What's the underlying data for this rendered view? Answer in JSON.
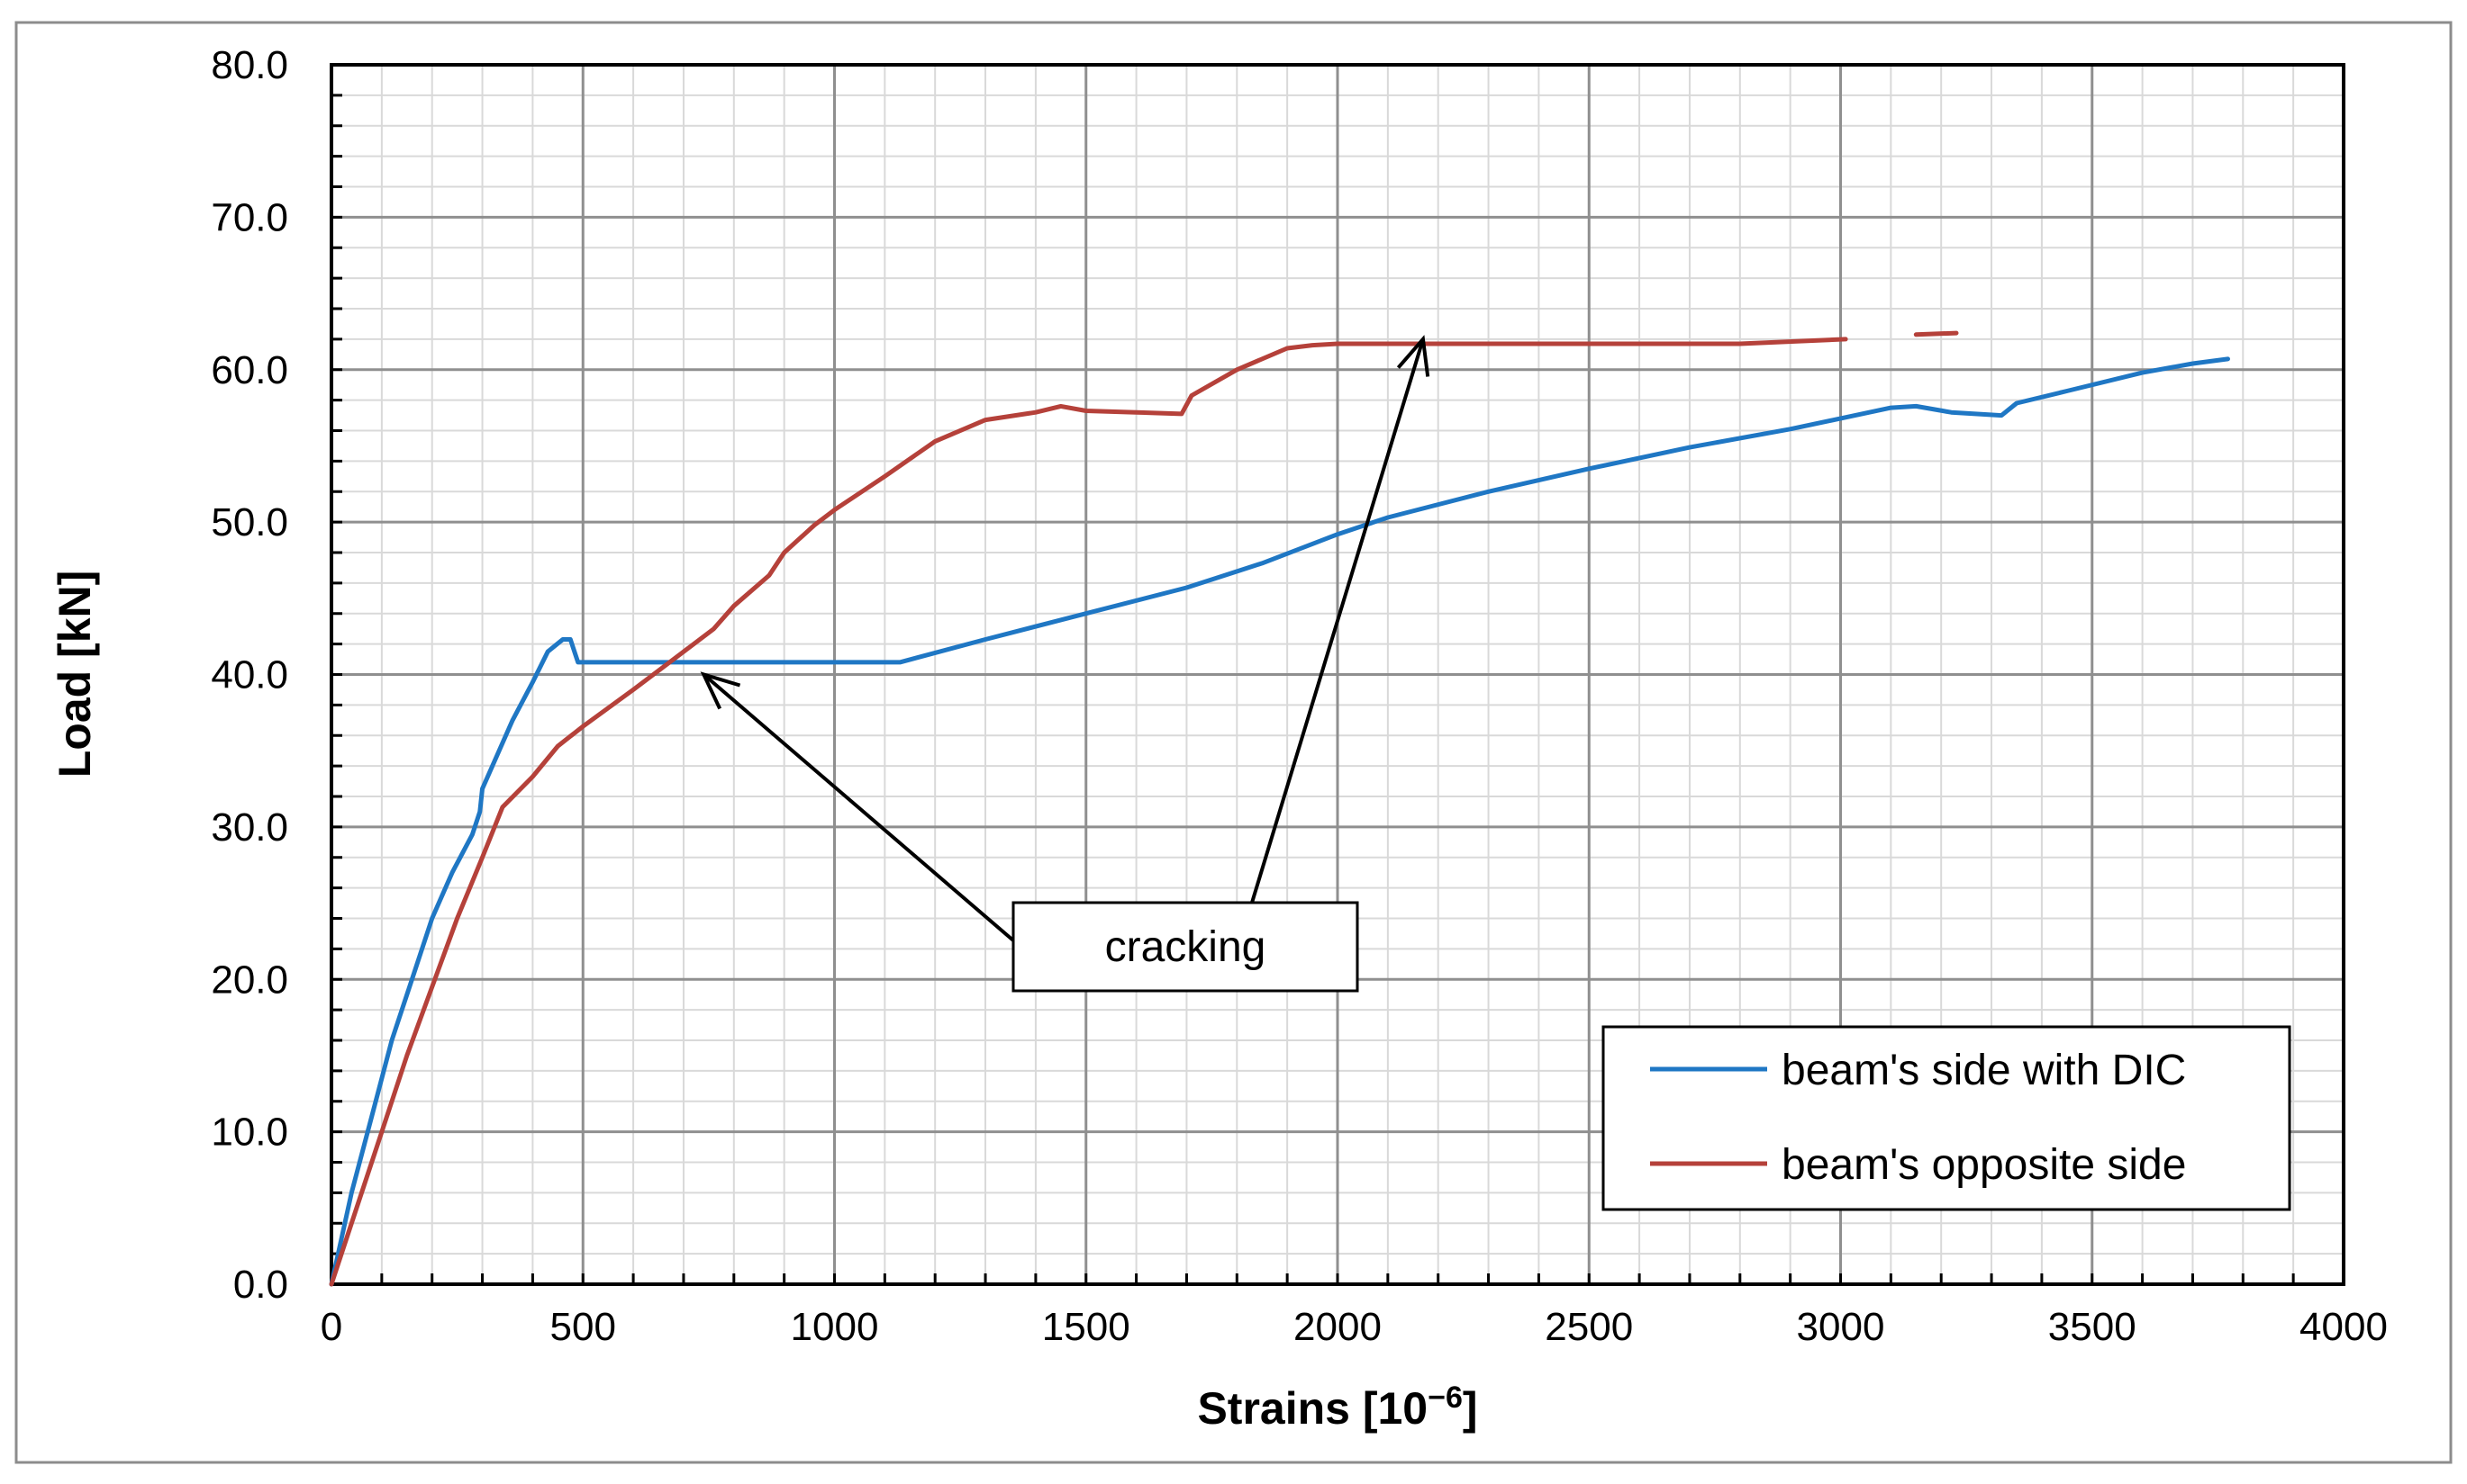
{
  "chart_data": {
    "type": "line",
    "title": "",
    "xlabel": "Strains [10",
    "xlabel_exponent": "−6",
    "xlabel_suffix": "]",
    "ylabel": "Load [kN]",
    "xlim": [
      0,
      4000
    ],
    "ylim": [
      0,
      80
    ],
    "x_ticks": [
      0,
      500,
      1000,
      1500,
      2000,
      2500,
      3000,
      3500,
      4000
    ],
    "y_ticks": [
      0,
      10,
      20,
      30,
      40,
      50,
      60,
      70,
      80
    ],
    "y_tick_labels": [
      "0.0",
      "10.0",
      "20.0",
      "30.0",
      "40.0",
      "50.0",
      "60.0",
      "70.0",
      "80.0"
    ],
    "x_tick_labels": [
      "0",
      "500",
      "1000",
      "1500",
      "2000",
      "2500",
      "3000",
      "3500",
      "4000"
    ],
    "grid": true,
    "legend_position": "bottom-right",
    "series": [
      {
        "name": "beam's side with DIC",
        "color": "#1f77c4",
        "points": [
          [
            0,
            0
          ],
          [
            40,
            6
          ],
          [
            80,
            11
          ],
          [
            120,
            16
          ],
          [
            160,
            20
          ],
          [
            200,
            24
          ],
          [
            240,
            27
          ],
          [
            280,
            29.5
          ],
          [
            295,
            31
          ],
          [
            300,
            32.5
          ],
          [
            320,
            34
          ],
          [
            360,
            37
          ],
          [
            400,
            39.5
          ],
          [
            430,
            41.5
          ],
          [
            460,
            42.3
          ],
          [
            475,
            42.3
          ],
          [
            490,
            40.8
          ],
          [
            600,
            40.8
          ],
          [
            800,
            40.8
          ],
          [
            1000,
            40.8
          ],
          [
            1130,
            40.8
          ],
          [
            1300,
            42.3
          ],
          [
            1500,
            44
          ],
          [
            1700,
            45.7
          ],
          [
            1850,
            47.3
          ],
          [
            2000,
            49.2
          ],
          [
            2100,
            50.3
          ],
          [
            2300,
            52
          ],
          [
            2500,
            53.5
          ],
          [
            2700,
            54.9
          ],
          [
            2900,
            56.1
          ],
          [
            3100,
            57.5
          ],
          [
            3150,
            57.6
          ],
          [
            3220,
            57.2
          ],
          [
            3320,
            57
          ],
          [
            3350,
            57.8
          ],
          [
            3450,
            58.6
          ],
          [
            3600,
            59.8
          ],
          [
            3700,
            60.4
          ],
          [
            3770,
            60.7
          ]
        ]
      },
      {
        "name": "beam's opposite side",
        "color": "#b5413a",
        "points": [
          [
            0,
            0
          ],
          [
            50,
            5
          ],
          [
            100,
            10
          ],
          [
            150,
            15
          ],
          [
            200,
            19.5
          ],
          [
            250,
            24
          ],
          [
            300,
            28
          ],
          [
            340,
            31.3
          ],
          [
            400,
            33.3
          ],
          [
            450,
            35.3
          ],
          [
            500,
            36.6
          ],
          [
            600,
            39
          ],
          [
            700,
            41.5
          ],
          [
            760,
            43
          ],
          [
            800,
            44.5
          ],
          [
            870,
            46.5
          ],
          [
            900,
            48
          ],
          [
            960,
            49.8
          ],
          [
            1000,
            50.8
          ],
          [
            1100,
            53
          ],
          [
            1200,
            55.3
          ],
          [
            1300,
            56.7
          ],
          [
            1400,
            57.2
          ],
          [
            1450,
            57.6
          ],
          [
            1500,
            57.3
          ],
          [
            1600,
            57.2
          ],
          [
            1690,
            57.1
          ],
          [
            1710,
            58.3
          ],
          [
            1800,
            60
          ],
          [
            1900,
            61.4
          ],
          [
            1950,
            61.6
          ],
          [
            2000,
            61.7
          ],
          [
            2400,
            61.7
          ],
          [
            2800,
            61.7
          ],
          [
            3010,
            62
          ]
        ],
        "extra_segment": [
          [
            3150,
            62.3
          ],
          [
            3230,
            62.4
          ]
        ]
      }
    ],
    "annotations": [
      {
        "text": "cracking",
        "arrow_targets": [
          [
            740,
            40
          ],
          [
            2170,
            62
          ]
        ]
      }
    ]
  }
}
